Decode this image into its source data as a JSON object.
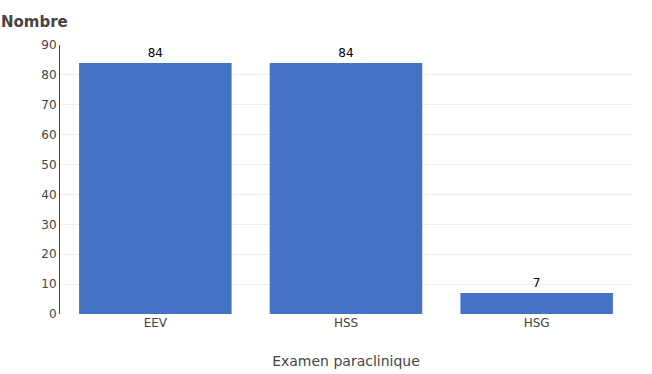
{
  "chart_data": {
    "type": "bar",
    "categories": [
      "EEV",
      "HSS",
      "HSG"
    ],
    "values": [
      84,
      84,
      7
    ],
    "color": "#4472C4",
    "xlabel": "Examen paraclinique",
    "ylabel": "Nombre",
    "ylim": [
      0,
      90
    ],
    "yticks": [
      0,
      10,
      20,
      30,
      40,
      50,
      60,
      70,
      80,
      90
    ],
    "grid": true,
    "data_labels": true
  }
}
